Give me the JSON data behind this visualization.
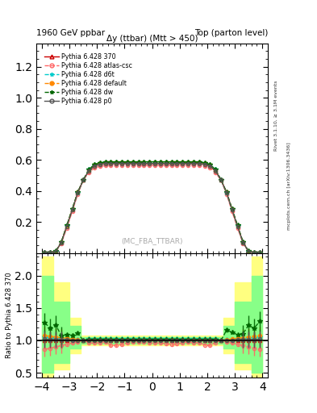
{
  "title_left": "1960 GeV ppbar",
  "title_right": "Top (parton level)",
  "plot_title": "Δy (ttbar) (Mtt > 450)",
  "watermark": "(MC_FBA_TTBAR)",
  "right_label": "Rivet 3.1.10, ≥ 3.1M events",
  "arxiv_label": "mcplots.cern.ch [arXiv:1306.3436]",
  "ylabel_ratio": "Ratio to Pythia 6.428 370",
  "xlim": [
    -4.2,
    4.2
  ],
  "ylim_main": [
    0.0,
    1.35
  ],
  "ylim_ratio": [
    0.42,
    2.35
  ],
  "yticks_main": [
    0.2,
    0.4,
    0.6,
    0.8,
    1.0,
    1.2
  ],
  "yticks_ratio": [
    0.5,
    1.0,
    1.5,
    2.0
  ],
  "xticks": [
    -4,
    -3,
    -2,
    -1,
    0,
    1,
    2,
    3,
    4
  ],
  "series": [
    {
      "label": "Pythia 6.428 370",
      "color": "#cc0000",
      "linestyle": "-",
      "marker": "^",
      "fillstyle": "none",
      "linewidth": 1.0,
      "markersize": 3
    },
    {
      "label": "Pythia 6.428 atlas-csc",
      "color": "#ff6666",
      "linestyle": "--",
      "marker": "o",
      "fillstyle": "none",
      "linewidth": 1.0,
      "markersize": 3
    },
    {
      "label": "Pythia 6.428 d6t",
      "color": "#00cccc",
      "linestyle": "--",
      "marker": "*",
      "fillstyle": "full",
      "linewidth": 1.0,
      "markersize": 4
    },
    {
      "label": "Pythia 6.428 default",
      "color": "#ff8800",
      "linestyle": "--",
      "marker": "o",
      "fillstyle": "full",
      "linewidth": 1.0,
      "markersize": 3
    },
    {
      "label": "Pythia 6.428 dw",
      "color": "#006600",
      "linestyle": "--",
      "marker": "*",
      "fillstyle": "full",
      "linewidth": 1.0,
      "markersize": 4
    },
    {
      "label": "Pythia 6.428 p0",
      "color": "#555555",
      "linestyle": "-",
      "marker": "o",
      "fillstyle": "none",
      "linewidth": 1.0,
      "markersize": 3
    }
  ],
  "x_edges": [
    -4.0,
    -3.8,
    -3.6,
    -3.4,
    -3.2,
    -3.0,
    -2.8,
    -2.6,
    -2.4,
    -2.2,
    -2.0,
    -1.8,
    -1.6,
    -1.4,
    -1.2,
    -1.0,
    -0.8,
    -0.6,
    -0.4,
    -0.2,
    0.0,
    0.2,
    0.4,
    0.6,
    0.8,
    1.0,
    1.2,
    1.4,
    1.6,
    1.8,
    2.0,
    2.2,
    2.4,
    2.6,
    2.8,
    3.0,
    3.2,
    3.4,
    3.6,
    3.8,
    4.0
  ]
}
